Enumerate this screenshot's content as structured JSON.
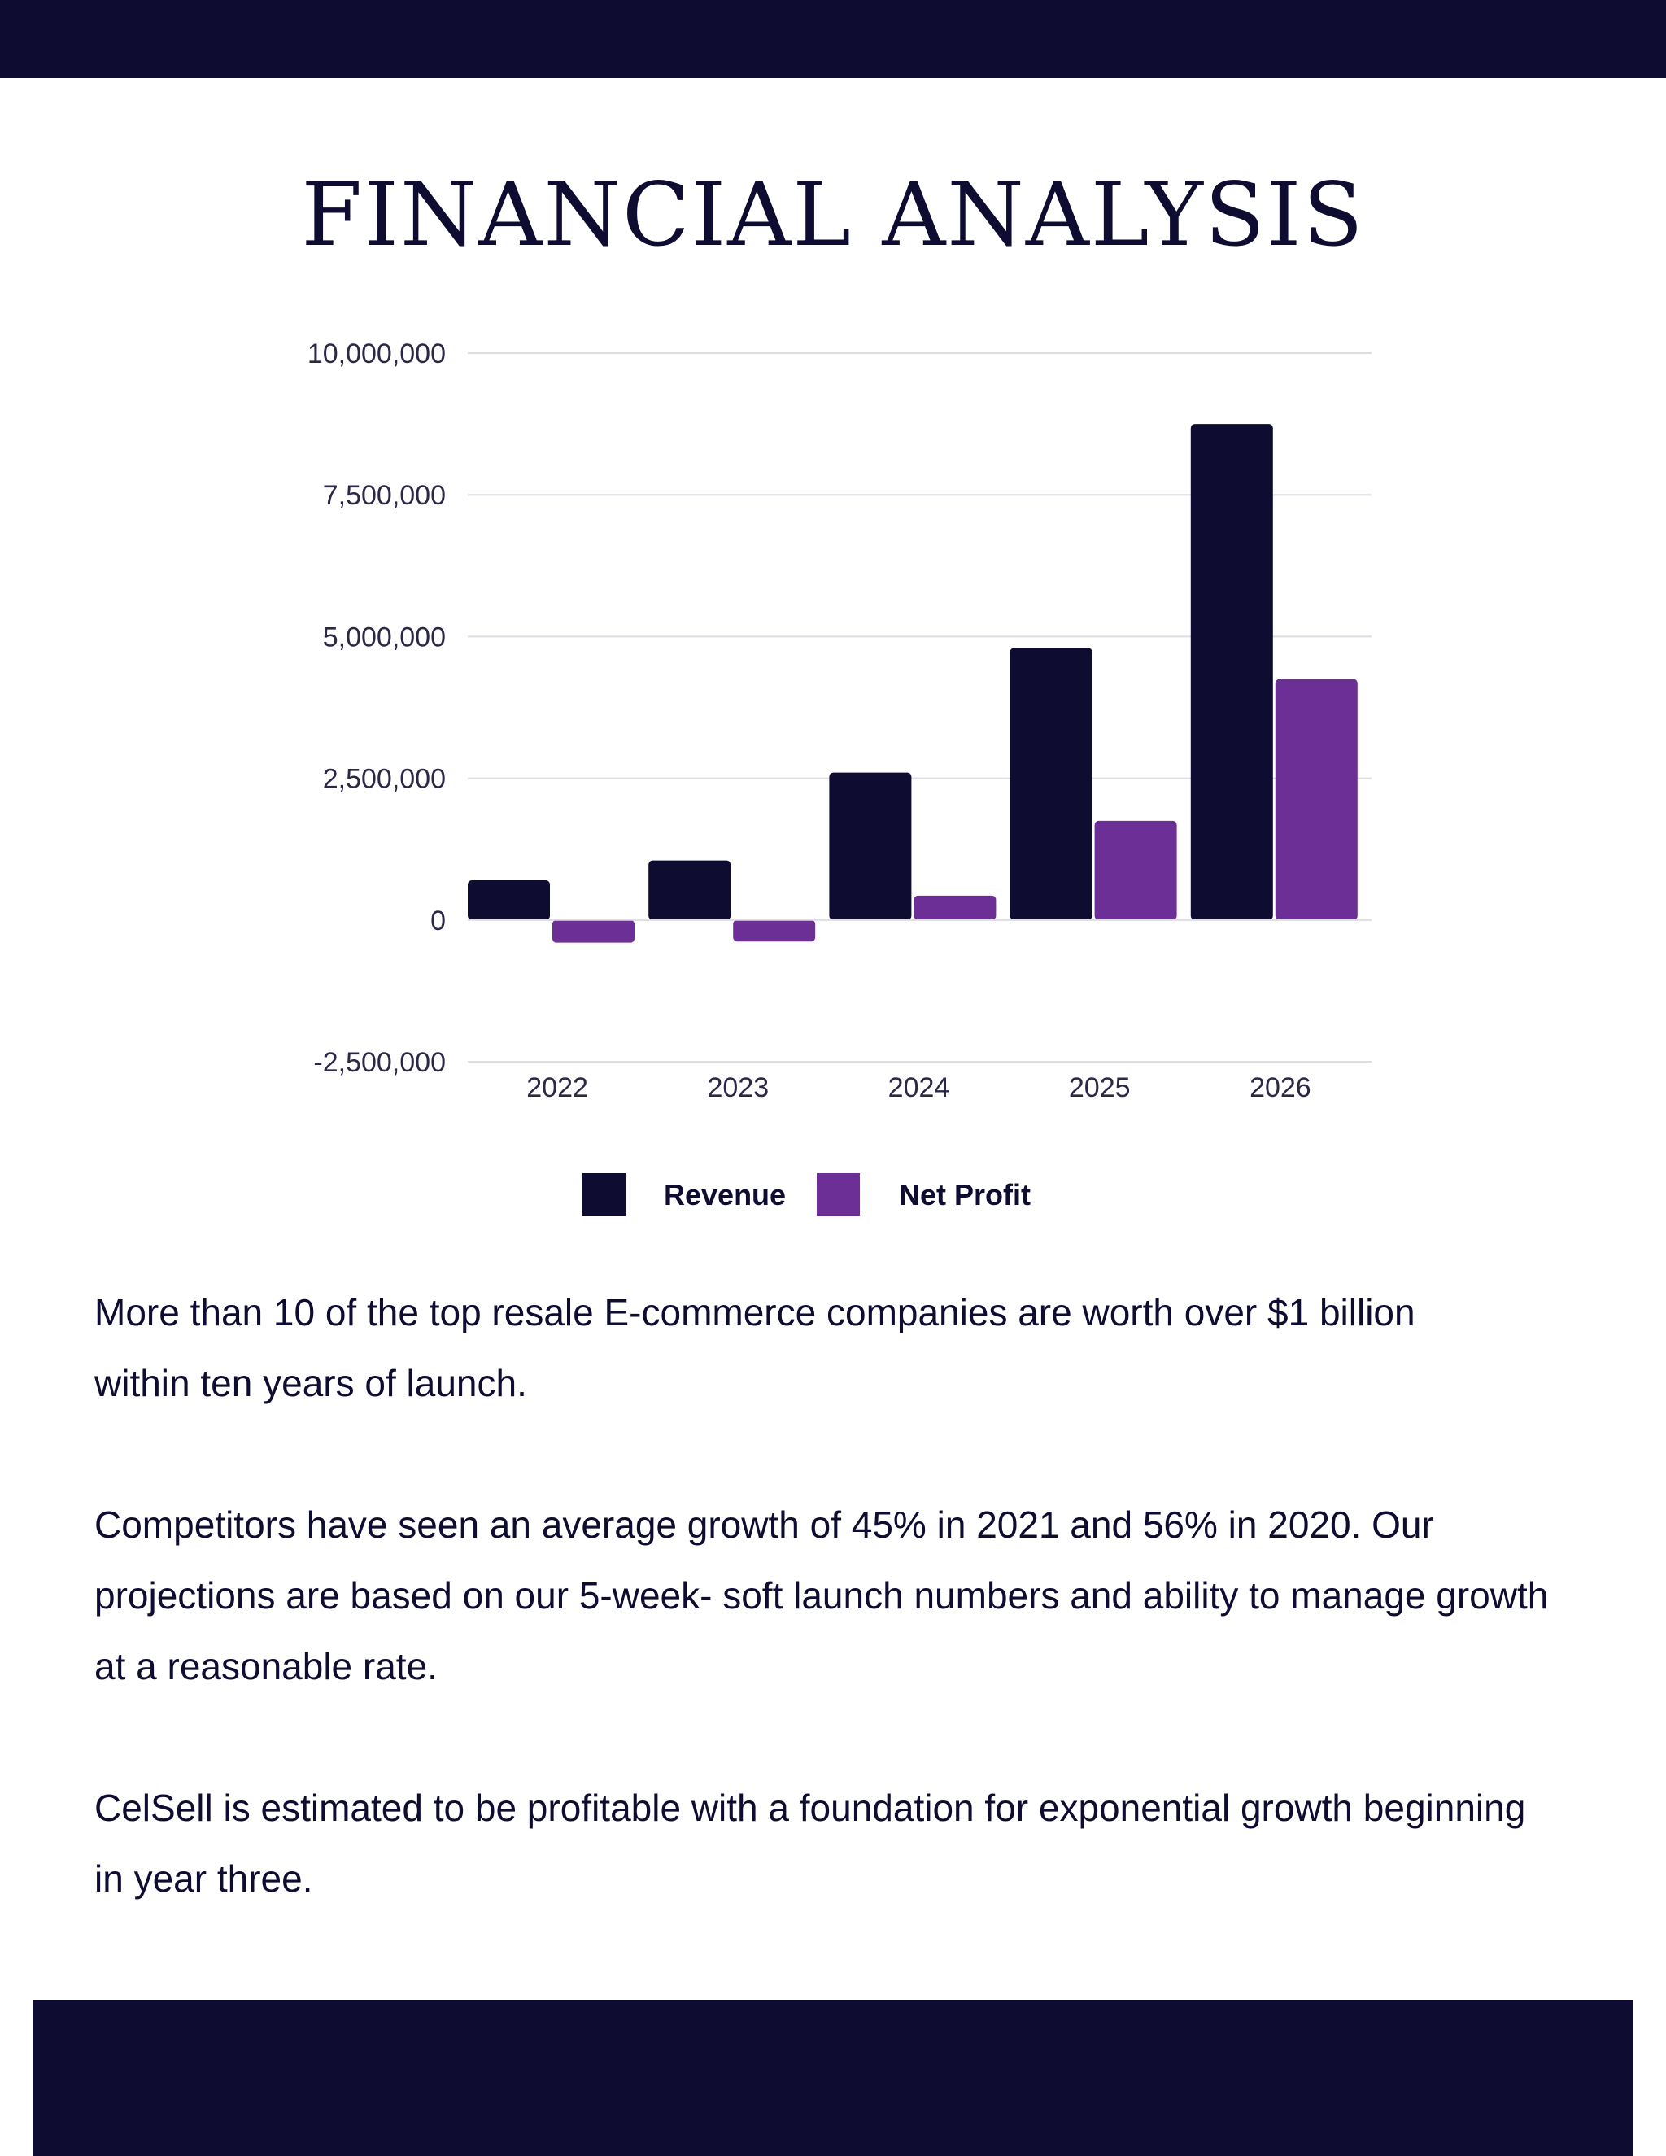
{
  "page": {
    "title": "FINANCIAL ANALYSIS",
    "paragraphs": [
      "More than 10 of the top resale E-commerce companies are worth over $1 billion within ten years of launch.",
      "Competitors have seen an average growth of 45% in 2021 and 56% in 2020. Our projections are based on our 5-week- soft launch numbers and ability to manage growth at a reasonable rate.",
      "CelSell is estimated to be profitable with a foundation for exponential growth beginning in year three."
    ]
  },
  "colors": {
    "navy": "#0e0c30",
    "purple": "#6b2f96",
    "grid": "#dddde3",
    "background": "#ffffff"
  },
  "chart_data": {
    "type": "bar",
    "title": "",
    "xlabel": "",
    "ylabel": "",
    "categories": [
      "2022",
      "2023",
      "2024",
      "2025",
      "2026"
    ],
    "series": [
      {
        "name": "Revenue",
        "color": "#0e0c30",
        "values": [
          700000,
          1050000,
          2600000,
          4800000,
          8750000
        ]
      },
      {
        "name": "Net Profit",
        "color": "#6b2f96",
        "values": [
          -400000,
          -380000,
          430000,
          1750000,
          4250000
        ]
      }
    ],
    "ylim": [
      -2500000,
      10000000
    ],
    "yticks": [
      10000000,
      7500000,
      5000000,
      2500000,
      0,
      -2500000
    ],
    "ytick_labels": [
      "10,000,000",
      "7,500,000",
      "5,000,000",
      "2,500,000",
      "0",
      "-2,500,000"
    ],
    "grid": true,
    "legend": "bottom-center"
  }
}
